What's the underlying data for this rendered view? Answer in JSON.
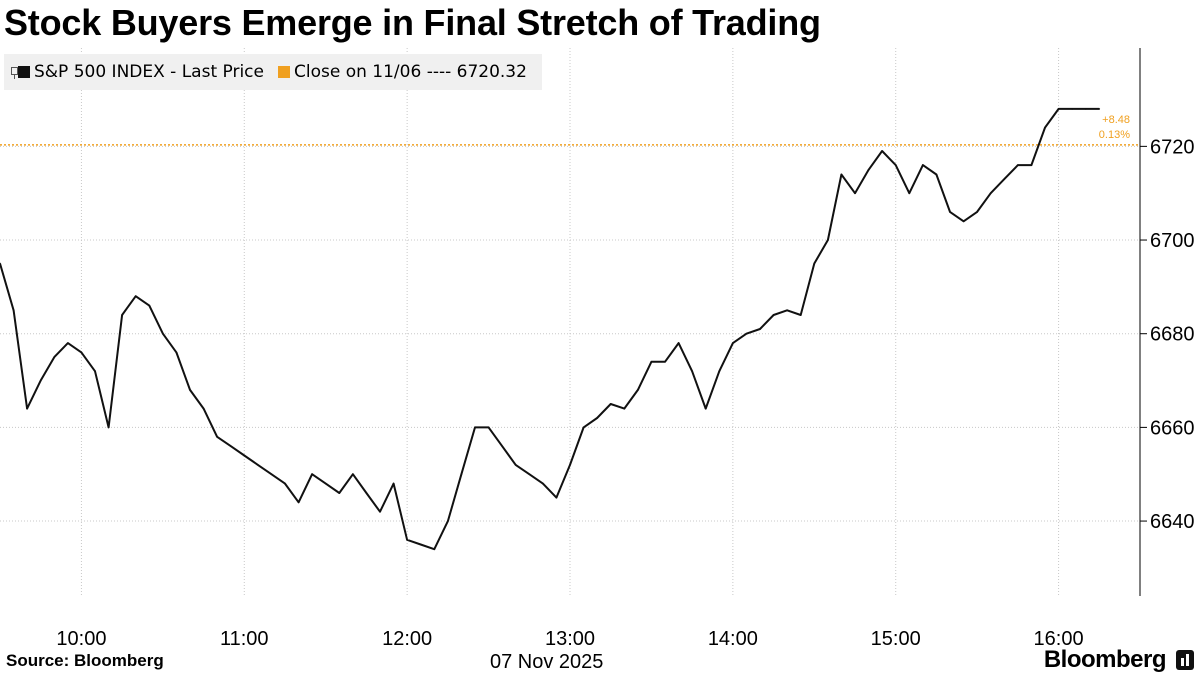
{
  "title": "Stock Buyers Emerge in Final Stretch of Trading",
  "legend": {
    "series_label": "S&P 500 INDEX - Last Price",
    "series_color": "#111111",
    "close_label": "Close on 11/06 ---- 6720.32",
    "close_color": "#f0a020"
  },
  "date_label": "07 Nov 2025",
  "source": "Source: Bloomberg",
  "brand": "Bloomberg",
  "chart_data": {
    "type": "line",
    "title": "Stock Buyers Emerge in Final Stretch of Trading",
    "series": [
      {
        "name": "S&P 500 INDEX - Last Price",
        "x": [
          "09:30",
          "09:35",
          "09:40",
          "09:45",
          "09:50",
          "09:55",
          "10:00",
          "10:05",
          "10:10",
          "10:15",
          "10:20",
          "10:25",
          "10:30",
          "10:35",
          "10:40",
          "10:45",
          "10:50",
          "10:55",
          "11:00",
          "11:05",
          "11:10",
          "11:15",
          "11:20",
          "11:25",
          "11:30",
          "11:35",
          "11:40",
          "11:45",
          "11:50",
          "11:55",
          "12:00",
          "12:05",
          "12:10",
          "12:15",
          "12:20",
          "12:25",
          "12:30",
          "12:35",
          "12:40",
          "12:45",
          "12:50",
          "12:55",
          "13:00",
          "13:05",
          "13:10",
          "13:15",
          "13:20",
          "13:25",
          "13:30",
          "13:35",
          "13:40",
          "13:45",
          "13:50",
          "13:55",
          "14:00",
          "14:05",
          "14:10",
          "14:15",
          "14:20",
          "14:25",
          "14:30",
          "14:35",
          "14:40",
          "14:45",
          "14:50",
          "14:55",
          "15:00",
          "15:05",
          "15:10",
          "15:15",
          "15:20",
          "15:25",
          "15:30",
          "15:35",
          "15:40",
          "15:45",
          "15:50",
          "15:55",
          "16:00",
          "16:05",
          "16:10",
          "16:15"
        ],
        "values": [
          6695,
          6685,
          6664,
          6670,
          6675,
          6678,
          6676,
          6672,
          6660,
          6684,
          6688,
          6686,
          6680,
          6676,
          6668,
          6664,
          6658,
          6656,
          6654,
          6652,
          6650,
          6648,
          6644,
          6650,
          6648,
          6646,
          6650,
          6646,
          6642,
          6648,
          6636,
          6635,
          6634,
          6640,
          6650,
          6660,
          6660,
          6656,
          6652,
          6650,
          6648,
          6645,
          6652,
          6660,
          6662,
          6665,
          6664,
          6668,
          6674,
          6674,
          6678,
          6672,
          6664,
          6672,
          6678,
          6680,
          6681,
          6684,
          6685,
          6684,
          6695,
          6700,
          6714,
          6710,
          6715,
          6719,
          6716,
          6710,
          6716,
          6714,
          6706,
          6704,
          6706,
          6710,
          6713,
          6716,
          6716,
          6724,
          6728,
          6728,
          6728,
          6728
        ],
        "color": "#111111"
      }
    ],
    "reference_line": {
      "label": "Close on 11/06",
      "value": 6720.32,
      "color": "#f0a020"
    },
    "last_value_labels": {
      "change": "+8.48",
      "change_pct": "0.13%"
    },
    "x_ticks": [
      "10:00",
      "11:00",
      "12:00",
      "13:00",
      "14:00",
      "15:00",
      "16:00"
    ],
    "y_ticks": [
      6640,
      6660,
      6680,
      6700,
      6720
    ],
    "ylim": [
      6624,
      6741
    ],
    "xlim": [
      "09:30",
      "16:30"
    ],
    "grid": "dotted vertical and horizontal",
    "legend_position": "top-left"
  }
}
